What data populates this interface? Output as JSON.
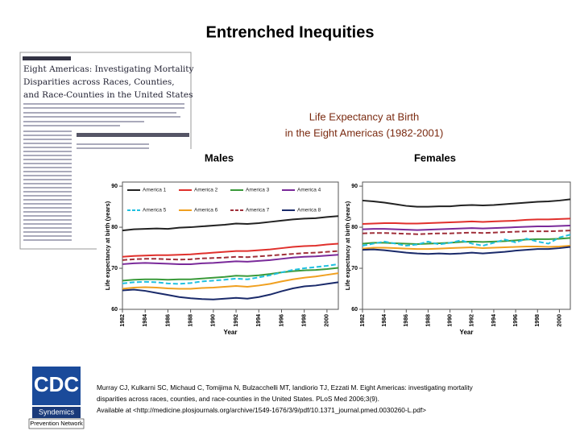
{
  "slide_title": "Entrenched Inequities",
  "figure_title": [
    "Life Expectancy at Birth",
    "in the Eight Americas (1982-2001)"
  ],
  "paper": {
    "title": [
      "Eight Americas: Investigating Mortality",
      "Disparities across Races, Counties,",
      "and Race-Counties in the United States"
    ]
  },
  "citation": [
    "Murray CJ, Kulkarni SC, Michaud C, Tomijima N, Bulzacchelli MT, Iandiorio TJ, Ezzati M. Eight Americas: investigating mortality",
    "disparities across races, counties, and race-counties in the United States. PLoS Med 2006;3(9).",
    "Available at <http://medicine.plosjournals.org/archive/1549-1676/3/9/pdf/10.1371_journal.pmed.0030260-L.pdf>"
  ],
  "logo": {
    "name": "CDC",
    "line1": "Syndemics",
    "line2": "Prevention Network"
  },
  "chart_data": [
    {
      "type": "line",
      "title": "Males",
      "x_label": "Year",
      "y_label": "Life expectancy at birth (years)",
      "legend": "top",
      "x": [
        1982,
        1983,
        1984,
        1985,
        1986,
        1987,
        1988,
        1989,
        1990,
        1991,
        1992,
        1993,
        1994,
        1995,
        1996,
        1997,
        1998,
        1999,
        2000,
        2001
      ],
      "xlim": [
        1982,
        2001
      ],
      "xticks": [
        1982,
        1984,
        1986,
        1988,
        1990,
        1992,
        1994,
        1996,
        1998,
        2000
      ],
      "ylim": [
        60,
        91
      ],
      "yticks": [
        60,
        70,
        80,
        90
      ],
      "series": [
        {
          "name": "America 1",
          "color": "#222222",
          "values": [
            79.2,
            79.5,
            79.6,
            79.7,
            79.6,
            79.9,
            80.0,
            80.2,
            80.4,
            80.6,
            80.9,
            80.8,
            81.0,
            81.3,
            81.6,
            81.9,
            82.1,
            82.2,
            82.5,
            82.7
          ]
        },
        {
          "name": "America 2",
          "color": "#e0302c",
          "values": [
            72.8,
            73.0,
            73.1,
            73.2,
            73.2,
            73.3,
            73.4,
            73.6,
            73.8,
            74.0,
            74.2,
            74.2,
            74.4,
            74.6,
            74.9,
            75.2,
            75.4,
            75.5,
            75.8,
            76.0
          ]
        },
        {
          "name": "America 3",
          "color": "#3a9a3a",
          "values": [
            67.0,
            67.2,
            67.3,
            67.3,
            67.2,
            67.3,
            67.3,
            67.5,
            67.7,
            67.9,
            68.2,
            68.1,
            68.3,
            68.6,
            69.0,
            69.3,
            69.5,
            69.6,
            69.8,
            70.1
          ]
        },
        {
          "name": "America 4",
          "color": "#7a2a9a",
          "values": [
            71.0,
            71.2,
            71.3,
            71.2,
            71.1,
            71.0,
            71.0,
            71.2,
            71.3,
            71.5,
            71.7,
            71.6,
            71.8,
            72.0,
            72.3,
            72.6,
            72.8,
            72.9,
            73.1,
            73.3
          ]
        },
        {
          "name": "America 5",
          "color": "#20c0e0",
          "dashed": true,
          "values": [
            66.3,
            66.6,
            66.7,
            66.6,
            66.3,
            66.2,
            66.4,
            66.8,
            67.0,
            67.2,
            67.5,
            67.3,
            67.8,
            68.3,
            69.0,
            69.6,
            70.0,
            70.3,
            70.6,
            71.0
          ]
        },
        {
          "name": "America 6",
          "color": "#f0a020",
          "values": [
            65.0,
            65.3,
            65.4,
            65.3,
            65.1,
            65.0,
            65.0,
            65.2,
            65.3,
            65.5,
            65.7,
            65.5,
            65.8,
            66.2,
            66.8,
            67.3,
            67.7,
            68.0,
            68.4,
            68.8
          ]
        },
        {
          "name": "America 7",
          "color": "#a0303a",
          "dashed": true,
          "values": [
            72.0,
            72.2,
            72.3,
            72.3,
            72.2,
            72.1,
            72.2,
            72.4,
            72.5,
            72.6,
            72.8,
            72.7,
            72.9,
            73.1,
            73.3,
            73.5,
            73.7,
            73.8,
            74.0,
            74.2
          ]
        },
        {
          "name": "America 8",
          "color": "#1a2a6a",
          "values": [
            64.6,
            64.8,
            64.5,
            64.0,
            63.5,
            63.0,
            62.7,
            62.5,
            62.4,
            62.6,
            62.8,
            62.6,
            63.0,
            63.6,
            64.4,
            65.1,
            65.6,
            65.8,
            66.2,
            66.6
          ]
        }
      ]
    },
    {
      "type": "line",
      "title": "Females",
      "x_label": "Year",
      "y_label": "Life expectancy at birth (years)",
      "x": [
        1982,
        1983,
        1984,
        1985,
        1986,
        1987,
        1988,
        1989,
        1990,
        1991,
        1992,
        1993,
        1994,
        1995,
        1996,
        1997,
        1998,
        1999,
        2000,
        2001
      ],
      "xlim": [
        1982,
        2001
      ],
      "xticks": [
        1982,
        1984,
        1986,
        1988,
        1990,
        1992,
        1994,
        1996,
        1998,
        2000
      ],
      "ylim": [
        60,
        91
      ],
      "yticks": [
        60,
        70,
        80,
        90
      ],
      "series": [
        {
          "color": "#222222",
          "values": [
            86.5,
            86.3,
            86.0,
            85.6,
            85.2,
            85.0,
            85.0,
            85.1,
            85.1,
            85.3,
            85.4,
            85.3,
            85.4,
            85.6,
            85.8,
            86.0,
            86.2,
            86.3,
            86.5,
            86.8
          ]
        },
        {
          "color": "#e0302c",
          "values": [
            80.8,
            80.9,
            81.0,
            81.0,
            80.9,
            80.9,
            81.0,
            81.1,
            81.2,
            81.3,
            81.4,
            81.3,
            81.4,
            81.5,
            81.6,
            81.8,
            81.9,
            81.9,
            82.0,
            82.1
          ]
        },
        {
          "color": "#3a9a3a",
          "values": [
            76.0,
            76.2,
            76.2,
            76.1,
            76.0,
            75.9,
            76.0,
            76.1,
            76.2,
            76.4,
            76.5,
            76.4,
            76.5,
            76.6,
            76.8,
            77.0,
            77.1,
            77.1,
            77.2,
            77.4
          ]
        },
        {
          "color": "#7a2a9a",
          "values": [
            79.5,
            79.6,
            79.6,
            79.5,
            79.4,
            79.3,
            79.4,
            79.5,
            79.6,
            79.7,
            79.8,
            79.7,
            79.8,
            79.9,
            80.0,
            80.1,
            80.2,
            80.2,
            80.3,
            80.4
          ]
        },
        {
          "color": "#20c0e0",
          "dashed": true,
          "values": [
            75.5,
            76.0,
            76.5,
            76.0,
            75.5,
            75.8,
            76.5,
            75.8,
            76.2,
            76.8,
            76.0,
            75.5,
            76.2,
            77.0,
            76.3,
            77.2,
            76.5,
            76.0,
            77.5,
            78.2
          ]
        },
        {
          "color": "#f0a020",
          "values": [
            74.8,
            75.0,
            75.0,
            74.9,
            74.8,
            74.7,
            74.7,
            74.8,
            74.9,
            75.0,
            75.1,
            74.9,
            75.0,
            75.1,
            75.2,
            75.3,
            75.3,
            75.2,
            75.3,
            75.5
          ]
        },
        {
          "color": "#a0303a",
          "dashed": true,
          "values": [
            78.5,
            78.6,
            78.6,
            78.5,
            78.4,
            78.3,
            78.4,
            78.5,
            78.5,
            78.6,
            78.7,
            78.6,
            78.7,
            78.8,
            78.9,
            79.0,
            79.0,
            79.0,
            79.1,
            79.2
          ]
        },
        {
          "color": "#1a2a6a",
          "values": [
            74.5,
            74.6,
            74.4,
            74.1,
            73.8,
            73.6,
            73.5,
            73.6,
            73.5,
            73.6,
            73.8,
            73.6,
            73.8,
            74.0,
            74.3,
            74.5,
            74.7,
            74.7,
            74.9,
            75.2
          ]
        }
      ]
    }
  ]
}
